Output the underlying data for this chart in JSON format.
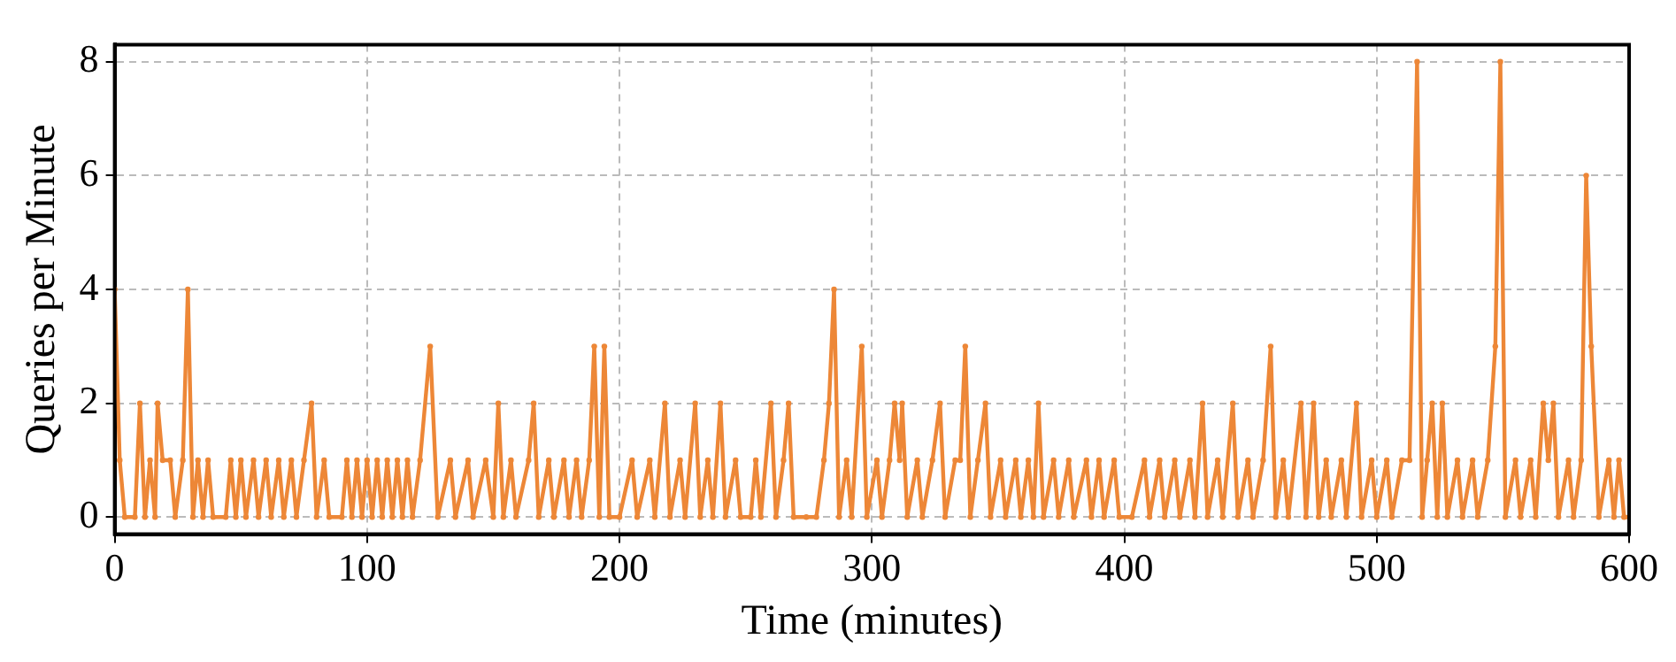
{
  "chart_data": {
    "type": "line",
    "xlabel": "Time (minutes)",
    "ylabel": "Queries per Minute",
    "xlim": [
      0,
      600
    ],
    "xticks": [
      0,
      100,
      200,
      300,
      400,
      500,
      600
    ],
    "ylim": [
      -0.3,
      8.3
    ],
    "yticks": [
      0,
      2,
      4,
      6,
      8
    ],
    "grid": true,
    "legend": false,
    "marker": "circle",
    "line_style": "solid",
    "series": [
      {
        "color": "#ed8737",
        "x": [
          0,
          2,
          4,
          8,
          10,
          12,
          14,
          16,
          17,
          19,
          22,
          24,
          27,
          29,
          31,
          33,
          35,
          37,
          39,
          44,
          46,
          48,
          50,
          52,
          55,
          57,
          60,
          62,
          65,
          67,
          70,
          72,
          75,
          78,
          80,
          83,
          85,
          90,
          92,
          94,
          96,
          98,
          100,
          102,
          104,
          106,
          108,
          110,
          112,
          114,
          116,
          118,
          121,
          125,
          128,
          133,
          135,
          140,
          142,
          147,
          150,
          152,
          154,
          157,
          159,
          164,
          166,
          168,
          172,
          174,
          178,
          180,
          183,
          185,
          188,
          190,
          192,
          194,
          196,
          200,
          205,
          207,
          212,
          214,
          218,
          220,
          224,
          226,
          230,
          232,
          235,
          237,
          240,
          242,
          246,
          248,
          252,
          254,
          256,
          260,
          262,
          265,
          267,
          269,
          274,
          278,
          281,
          283,
          285,
          287,
          290,
          292,
          296,
          298,
          302,
          304,
          307,
          309,
          311,
          312,
          314,
          318,
          320,
          324,
          327,
          329,
          333,
          335,
          337,
          339,
          342,
          345,
          347,
          351,
          353,
          357,
          359,
          362,
          364,
          366,
          368,
          372,
          374,
          378,
          380,
          385,
          387,
          390,
          392,
          396,
          398,
          403,
          408,
          410,
          414,
          416,
          420,
          422,
          426,
          428,
          431,
          433,
          437,
          439,
          443,
          445,
          449,
          451,
          455,
          458,
          460,
          463,
          465,
          470,
          472,
          475,
          477,
          480,
          482,
          486,
          488,
          492,
          494,
          498,
          500,
          504,
          506,
          510,
          513,
          516,
          518,
          520,
          522,
          524,
          526,
          528,
          532,
          534,
          538,
          540,
          544,
          547,
          549,
          551,
          555,
          557,
          561,
          563,
          566,
          568,
          570,
          572,
          576,
          578,
          581,
          583,
          585,
          588,
          592,
          594,
          596,
          598,
          600
        ],
        "values": [
          4,
          1,
          0,
          0,
          2,
          0,
          1,
          0,
          2,
          1,
          1,
          0,
          1,
          4,
          0,
          1,
          0,
          1,
          0,
          0,
          1,
          0,
          1,
          0,
          1,
          0,
          1,
          0,
          1,
          0,
          1,
          0,
          1,
          2,
          0,
          1,
          0,
          0,
          1,
          0,
          1,
          0,
          1,
          0,
          1,
          0,
          1,
          0,
          1,
          0,
          1,
          0,
          1,
          3,
          0,
          1,
          0,
          1,
          0,
          1,
          0,
          2,
          0,
          1,
          0,
          1,
          2,
          0,
          1,
          0,
          1,
          0,
          1,
          0,
          1,
          3,
          0,
          3,
          0,
          0,
          1,
          0,
          1,
          0,
          2,
          0,
          1,
          0,
          2,
          0,
          1,
          0,
          2,
          0,
          1,
          0,
          0,
          1,
          0,
          2,
          0,
          1,
          2,
          0,
          0,
          0,
          1,
          2,
          4,
          0,
          1,
          0,
          3,
          0,
          1,
          0,
          1,
          2,
          1,
          2,
          0,
          1,
          0,
          1,
          2,
          0,
          1,
          1,
          3,
          0,
          1,
          2,
          0,
          1,
          0,
          1,
          0,
          1,
          0,
          2,
          0,
          1,
          0,
          1,
          0,
          1,
          0,
          1,
          0,
          1,
          0,
          0,
          1,
          0,
          1,
          0,
          1,
          0,
          1,
          0,
          2,
          0,
          1,
          0,
          2,
          0,
          1,
          0,
          1,
          3,
          0,
          1,
          0,
          2,
          0,
          2,
          0,
          1,
          0,
          1,
          0,
          2,
          0,
          1,
          0,
          1,
          0,
          1,
          1,
          8,
          0,
          1,
          2,
          0,
          2,
          0,
          1,
          0,
          1,
          0,
          1,
          3,
          8,
          0,
          1,
          0,
          1,
          0,
          2,
          1,
          2,
          0,
          1,
          0,
          1,
          6,
          3,
          0,
          1,
          0,
          1,
          0,
          0
        ]
      }
    ]
  }
}
